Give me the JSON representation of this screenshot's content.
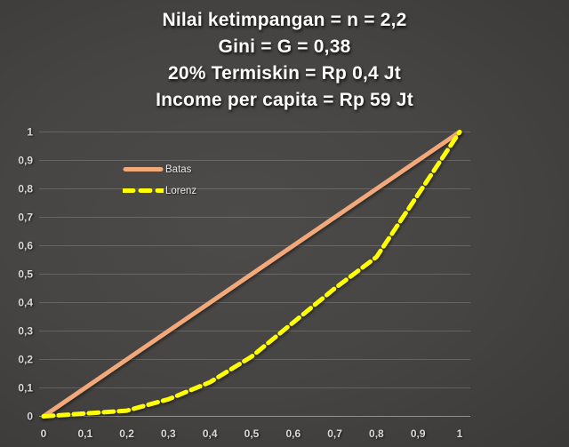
{
  "title": {
    "lines": [
      "Nilai ketimpangan = n = 2,2",
      "Gini = G = 0,38",
      "20% Termiskin = Rp 0,4 Jt",
      "Income per capita = Rp 59 Jt"
    ]
  },
  "legend": {
    "items": [
      {
        "label": "Batas",
        "color": "#F1A87A",
        "style": "solid"
      },
      {
        "label": "Lorenz",
        "color": "#FFFF00",
        "style": "dashed"
      }
    ]
  },
  "chart_data": {
    "type": "line",
    "title": "Nilai ketimpangan = n = 2,2 | Gini = G = 0,38 | 20% Termiskin = Rp 0,4 Jt | Income per capita = Rp 59 Jt",
    "xlabel": "",
    "ylabel": "",
    "xlim": [
      0,
      1
    ],
    "ylim": [
      0,
      1
    ],
    "grid": "horizontal",
    "legend_position": "inside-upper-left",
    "x_tick_labels": [
      "0",
      "0,1",
      "0,2",
      "0,3",
      "0,4",
      "0,5",
      "0,6",
      "0,7",
      "0,8",
      "0,9",
      "1"
    ],
    "y_tick_labels": [
      "0",
      "0,1",
      "0,2",
      "0,3",
      "0,4",
      "0,5",
      "0,6",
      "0,7",
      "0,8",
      "0,9",
      "1"
    ],
    "series": [
      {
        "name": "Batas",
        "color": "#F1A87A",
        "dash": "solid",
        "width": 5,
        "x": [
          0,
          1
        ],
        "y": [
          0,
          1
        ]
      },
      {
        "name": "Lorenz",
        "color": "#FFFF00",
        "dash": "dashed",
        "width": 5,
        "x": [
          0,
          0.1,
          0.2,
          0.3,
          0.4,
          0.5,
          0.6,
          0.7,
          0.8,
          0.9,
          1
        ],
        "y": [
          0,
          0.01,
          0.02,
          0.06,
          0.12,
          0.21,
          0.33,
          0.45,
          0.56,
          0.78,
          1
        ]
      }
    ]
  }
}
